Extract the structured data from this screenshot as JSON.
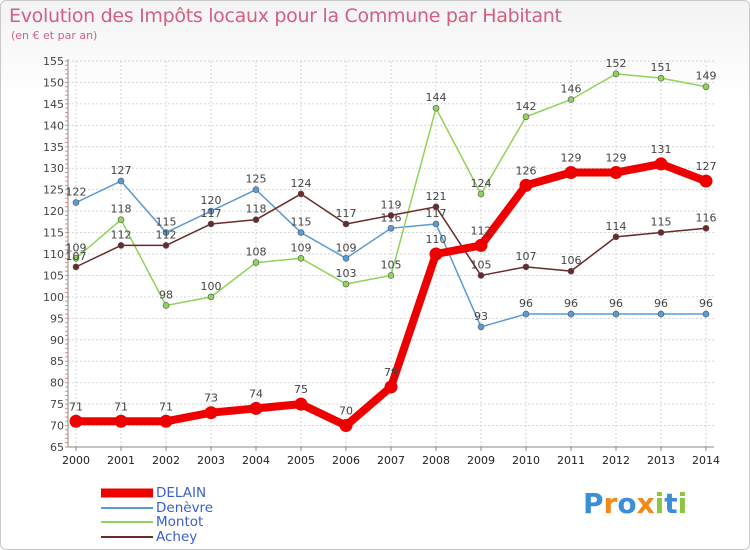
{
  "title": "Evolution des Impôts locaux pour la Commune par Habitant",
  "subtitle": "(en € et par an)",
  "chart_data": {
    "type": "line",
    "title": "Evolution des Impôts locaux pour la Commune par Habitant",
    "subtitle": "(en € et par an)",
    "x": [
      2000,
      2001,
      2002,
      2003,
      2004,
      2005,
      2006,
      2007,
      2008,
      2009,
      2010,
      2011,
      2012,
      2013,
      2014
    ],
    "ylim": [
      65,
      155
    ],
    "yticks": [
      65,
      70,
      75,
      80,
      85,
      90,
      95,
      100,
      105,
      110,
      115,
      120,
      125,
      130,
      135,
      140,
      145,
      150,
      155
    ],
    "grid": true,
    "legend_position": "bottom-left",
    "series": [
      {
        "name": "Denèvre",
        "color": "#5a9bd4",
        "values": [
          122,
          127,
          115,
          120,
          125,
          115,
          109,
          116,
          117,
          93,
          96,
          96,
          96,
          96,
          96
        ]
      },
      {
        "name": "Montot",
        "color": "#8fd35a",
        "values": [
          109,
          118,
          98,
          100,
          108,
          109,
          103,
          105,
          144,
          124,
          142,
          146,
          152,
          151,
          149
        ]
      },
      {
        "name": "Achey",
        "color": "#6b2a2a",
        "values": [
          107,
          112,
          112,
          117,
          118,
          124,
          117,
          119,
          121,
          105,
          107,
          106,
          114,
          115,
          116
        ]
      },
      {
        "name": "DELAIN",
        "color": "#ee0000",
        "values": [
          71,
          71,
          71,
          73,
          74,
          75,
          70,
          79,
          110,
          112,
          126,
          129,
          129,
          131,
          127
        ]
      }
    ]
  },
  "legend": {
    "items": [
      {
        "label": "DELAIN",
        "color": "#ee0000"
      },
      {
        "label": "Denèvre",
        "color": "#5a9bd4"
      },
      {
        "label": "Montot",
        "color": "#8fd35a"
      },
      {
        "label": "Achey",
        "color": "#6b2a2a"
      }
    ]
  },
  "logo": {
    "letters": [
      "P",
      "r",
      "o",
      "x",
      "i",
      "t",
      "i"
    ],
    "colors": [
      "#3b8fd6",
      "#f08a1a",
      "#3b8fd6",
      "#f08a1a",
      "#8cc63f",
      "#3b8fd6",
      "#8cc63f"
    ]
  }
}
